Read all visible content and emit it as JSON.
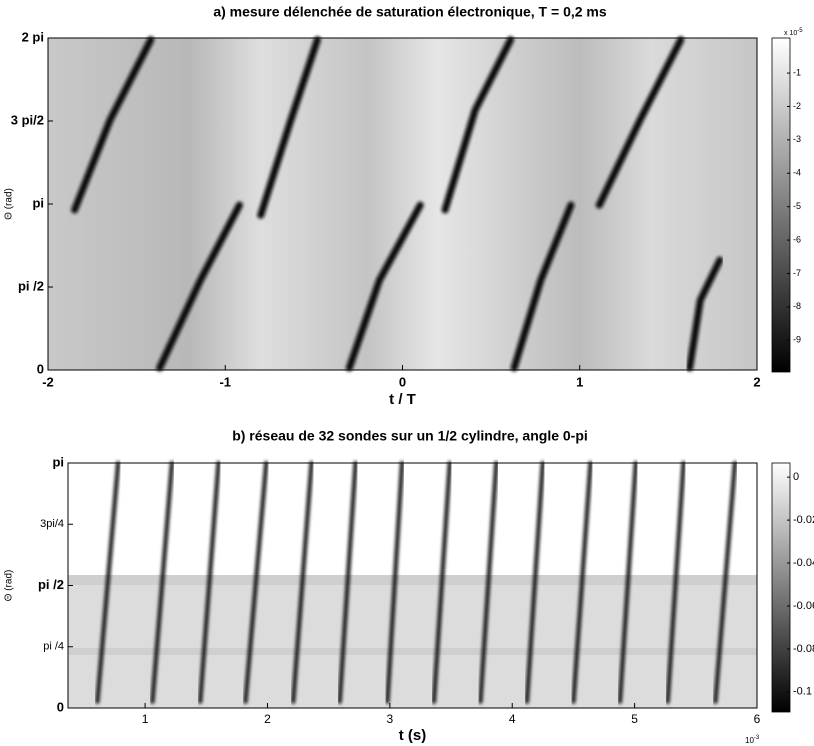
{
  "chart_data": [
    {
      "type": "heatmap",
      "title": "a) mesure délenchée de saturation électronique, T = 0,2 ms",
      "xlabel": "t / T",
      "ylabel": "Θ (rad)",
      "xlim": [
        -2,
        2
      ],
      "xticks": [
        -2,
        -1,
        0,
        1,
        2
      ],
      "ylim": [
        0,
        6.2832
      ],
      "yticks": [
        {
          "value": 0,
          "label": "0"
        },
        {
          "value": 1.5708,
          "label": "pi /2"
        },
        {
          "value": 3.1416,
          "label": "pi"
        },
        {
          "value": 4.7124,
          "label": "3 pi/2"
        },
        {
          "value": 6.2832,
          "label": "2 pi"
        }
      ],
      "clim": [
        -9.95,
        0.05
      ],
      "cticks": [
        -1,
        -2,
        -3,
        -4,
        -5,
        -6,
        -7,
        -8,
        -9
      ],
      "colorbar_base": "x 10",
      "colorbar_exponent": "-5",
      "ridges": [
        {
          "x": [
            -1.85,
            -1.65,
            -1.42
          ],
          "values": [
            3.03,
            4.73,
            6.25
          ]
        },
        {
          "x": [
            -0.8,
            -0.63,
            -0.48
          ],
          "values": [
            2.93,
            4.73,
            6.25
          ]
        },
        {
          "x": [
            0.24,
            0.41,
            0.61
          ],
          "values": [
            3.03,
            4.92,
            6.25
          ]
        },
        {
          "x": [
            1.11,
            1.34,
            1.57
          ],
          "values": [
            3.12,
            4.73,
            6.25
          ]
        },
        {
          "x": [
            -1.37,
            -1.14,
            -0.92
          ],
          "values": [
            0.04,
            1.7,
            3.12
          ]
        },
        {
          "x": [
            -0.3,
            -0.13,
            0.1
          ],
          "values": [
            0.04,
            1.7,
            3.12
          ]
        },
        {
          "x": [
            0.63,
            0.78,
            0.95
          ],
          "values": [
            0.04,
            1.7,
            3.12
          ]
        },
        {
          "x": [
            1.62,
            1.68,
            1.79
          ],
          "values": [
            0.04,
            1.32,
            2.08
          ]
        }
      ]
    },
    {
      "type": "heatmap",
      "title": "b) réseau de 32 sondes sur un 1/2 cylindre, angle 0-pi",
      "xlabel": "t (s)",
      "ylabel": "Θ (rad)",
      "xlim": [
        0.37,
        6
      ],
      "xticks": [
        1,
        2,
        3,
        4,
        5,
        6
      ],
      "x_exponent_base": "10",
      "x_exponent": "-3",
      "ylim": [
        0,
        3.1416
      ],
      "yticks": [
        {
          "value": 0,
          "label": "0"
        },
        {
          "value": 0.7854,
          "label": "pi /4"
        },
        {
          "value": 1.5708,
          "label": "pi /2"
        },
        {
          "value": 2.3562,
          "label": "3pi/4"
        },
        {
          "value": 3.1416,
          "label": "pi"
        }
      ],
      "clim": [
        -0.1094,
        0.0066
      ],
      "cticks": [
        0,
        -0.02,
        -0.04,
        -0.06,
        -0.08,
        -0.1
      ],
      "ridges": [
        {
          "x": [
            0.61,
            0.78
          ],
          "values": [
            0.08,
            3.14
          ]
        },
        {
          "x": [
            1.06,
            1.22
          ],
          "values": [
            0.08,
            3.14
          ]
        },
        {
          "x": [
            1.45,
            1.6
          ],
          "values": [
            0.08,
            3.14
          ]
        },
        {
          "x": [
            1.82,
            1.99
          ],
          "values": [
            0.08,
            3.14
          ]
        },
        {
          "x": [
            2.21,
            2.36
          ],
          "values": [
            0.08,
            3.14
          ]
        },
        {
          "x": [
            2.59,
            2.72
          ],
          "values": [
            0.08,
            3.14
          ]
        },
        {
          "x": [
            2.98,
            3.1
          ],
          "values": [
            0.08,
            3.14
          ]
        },
        {
          "x": [
            3.36,
            3.49
          ],
          "values": [
            0.08,
            3.14
          ]
        },
        {
          "x": [
            3.74,
            3.87
          ],
          "values": [
            0.08,
            3.14
          ]
        },
        {
          "x": [
            4.12,
            4.25
          ],
          "values": [
            0.08,
            3.14
          ]
        },
        {
          "x": [
            4.5,
            4.64
          ],
          "values": [
            0.08,
            3.14
          ]
        },
        {
          "x": [
            4.88,
            5.01
          ],
          "values": [
            0.08,
            3.14
          ]
        },
        {
          "x": [
            5.27,
            5.4
          ],
          "values": [
            0.08,
            3.14
          ]
        },
        {
          "x": [
            5.66,
            5.82
          ],
          "values": [
            0.08,
            3.14
          ]
        }
      ]
    }
  ]
}
